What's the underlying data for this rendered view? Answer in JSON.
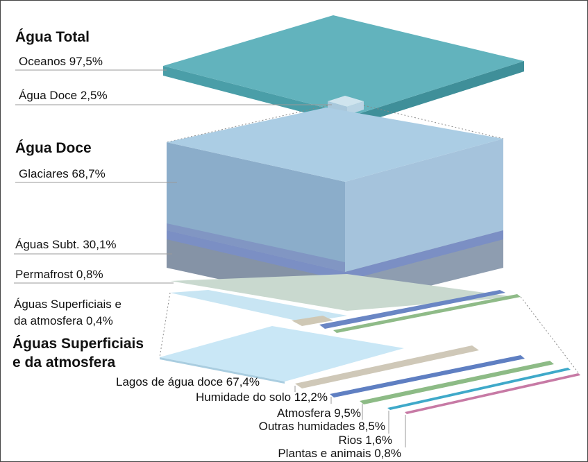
{
  "total": {
    "title": "Água Total",
    "items": [
      "Oceanos 97,5%",
      "Água Doce 2,5%"
    ]
  },
  "fresh": {
    "title": "Água Doce",
    "items": [
      "Glaciares 68,7%",
      "Águas Subt. 30,1%",
      "Permafrost 0,8%",
      [
        "Águas Superficiais e",
        "da atmosfera 0,4%"
      ]
    ]
  },
  "surface": {
    "title": [
      "Águas Superficiais",
      "e da atmosfera"
    ],
    "items": [
      "Lagos de água doce 67,4%",
      "Humidade do solo 12,2%",
      "Atmosfera 9,5%",
      "Outras humidades 8,5%",
      "Rios 1,6%",
      "Plantas e animais 0,8%"
    ]
  }
}
